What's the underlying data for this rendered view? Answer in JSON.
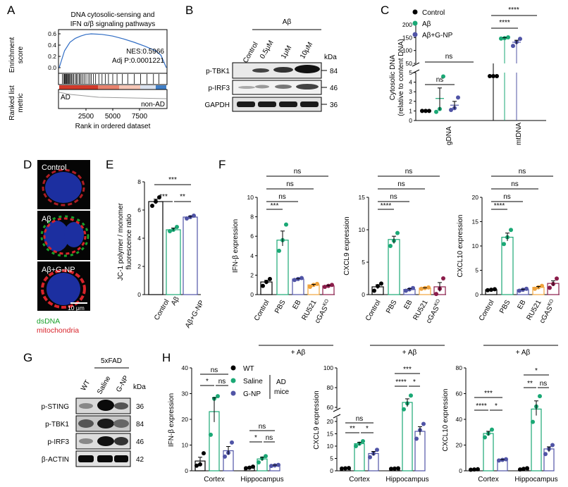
{
  "colors": {
    "black": "#000000",
    "green": "#1aa875",
    "blue": "#5054a6",
    "orange": "#f0a33c",
    "purple": "#8b1c4a",
    "gsea_line": "#2f6cc4",
    "dna_blue": "#1c2fa0",
    "dsdna_green": "#19a02a",
    "mito_red": "#d8232a"
  },
  "panels": {
    "A": {
      "letter": "A",
      "title_line1": "DNA cytosolic-sensing and",
      "title_line2": "IFN α/β signaling pathways",
      "nes": "NES:0.5966",
      "adjp": "Adj P:0.0001221",
      "ylabel_top_1": "Enrichment",
      "ylabel_top_2": "score",
      "yticks": [
        "0.6",
        "0.4",
        "0.2",
        "0.0"
      ],
      "ylabel_bot_1": "Ranked list",
      "ylabel_bot_2": "metric",
      "ad_label": "AD",
      "nonad_label": "non-AD",
      "xticks": [
        "2500",
        "5000",
        "7500"
      ],
      "xlabel": "Rank in ordered dataset"
    },
    "B": {
      "letter": "B",
      "ab_header": "Aβ",
      "lanes": [
        "Control",
        "0.5μM",
        "1μM",
        "10μM"
      ],
      "kda": "kDa",
      "rows": [
        {
          "name": "p-TBK1",
          "kda": "84"
        },
        {
          "name": "p-IRF3",
          "kda": "46"
        },
        {
          "name": "GAPDH",
          "kda": "36"
        }
      ]
    },
    "C": {
      "letter": "C",
      "legend": [
        "Control",
        "Aβ",
        "Aβ+G-NP"
      ],
      "ylabel_1": "Cytosolic DNA",
      "ylabel_2": "(relative to content DNA)",
      "yticks_top": [
        "200",
        "150",
        "100",
        "50"
      ],
      "yticks_bot": [
        "5",
        "4",
        "3",
        "2",
        "1",
        "0"
      ],
      "categories": [
        "gDNA",
        "mtDNA"
      ],
      "sig": [
        "ns",
        "ns",
        "****",
        "****"
      ]
    },
    "D": {
      "letter": "D",
      "labels": [
        "Control",
        "Aβ",
        "Aβ+G-NP"
      ],
      "scale": "10 μm",
      "legend1": "dsDNA",
      "legend2": "mitochondria"
    },
    "E": {
      "letter": "E",
      "ylabel_1": "JC-1 polymer / monomer",
      "ylabel_2": "fluorescence ratio",
      "yticks": [
        "8",
        "6",
        "4",
        "2",
        "0"
      ],
      "categories": [
        "Control",
        "Aβ",
        "Aβ+G-NP"
      ],
      "sig": [
        "***",
        "***",
        "**"
      ]
    },
    "F": {
      "letter": "F",
      "categories": [
        "Control",
        "PBS",
        "EB",
        "RU521",
        "cGAS"
      ],
      "ko": "KO",
      "footer": "+ Aβ",
      "sig_main": "***",
      "sig_main_cx": "****",
      "ns": "ns",
      "charts": [
        {
          "ylabel": "IFN-β expression",
          "yticks": [
            "10",
            "8",
            "6",
            "4",
            "2",
            "0"
          ]
        },
        {
          "ylabel": "CXCL9 expression",
          "yticks": [
            "15",
            "10",
            "5",
            "0"
          ]
        },
        {
          "ylabel": "CXCL10 expression",
          "yticks": [
            "20",
            "15",
            "10",
            "5",
            "0"
          ]
        }
      ]
    },
    "G": {
      "letter": "G",
      "header": "5xFAD",
      "lanes": [
        "WT",
        "Saline",
        "G-NP"
      ],
      "kda": "kDa",
      "rows": [
        {
          "name": "p-STING",
          "kda": "36"
        },
        {
          "name": "p-TBK1",
          "kda": "84"
        },
        {
          "name": "p-IRF3",
          "kda": "46"
        },
        {
          "name": "β-ACTIN",
          "kda": "42"
        }
      ]
    },
    "H": {
      "letter": "H",
      "legend": [
        "WT",
        "Saline",
        "G-NP"
      ],
      "legend_side_1": "AD",
      "legend_side_2": "mice",
      "groups": [
        "Cortex",
        "Hippocampus"
      ],
      "charts": [
        {
          "ylabel": "IFN-β expression",
          "yticks": [
            "40",
            "30",
            "20",
            "10",
            "0"
          ]
        },
        {
          "ylabel": "CXCL9 expression",
          "yticks_top": [
            "100",
            "80",
            "60"
          ],
          "yticks_bot": [
            "20",
            "15",
            "10",
            "5",
            "0"
          ]
        },
        {
          "ylabel": "CXCL10 expression",
          "yticks": [
            "80",
            "60",
            "40",
            "20",
            "0"
          ]
        }
      ]
    }
  },
  "chart_data": [
    {
      "panel": "A",
      "type": "line",
      "x": [
        0,
        500,
        1000,
        1500,
        2000,
        2500,
        3000,
        4000,
        5000,
        6000,
        7000,
        8000,
        9000,
        9500,
        10000
      ],
      "y": [
        0.0,
        0.3,
        0.45,
        0.52,
        0.56,
        0.59,
        0.6,
        0.59,
        0.56,
        0.51,
        0.45,
        0.38,
        0.3,
        0.22,
        0.0
      ],
      "xlim": [
        0,
        10000
      ],
      "ylim": [
        0,
        0.65
      ]
    },
    {
      "panel": "C",
      "type": "bar",
      "categories": [
        "gDNA",
        "mtDNA"
      ],
      "series": [
        {
          "name": "Control",
          "values": [
            1.0,
            1.0
          ],
          "points": [
            [
              1.0,
              1.0,
              1.0
            ],
            [
              1.0,
              1.0,
              1.0
            ]
          ]
        },
        {
          "name": "Aβ",
          "values": [
            2.3,
            148
          ],
          "points": [
            [
              0.9,
              1.2,
              4.6
            ],
            [
              146,
              148,
              151
            ]
          ]
        },
        {
          "name": "Aβ+G-NP",
          "values": [
            1.6,
            132
          ],
          "points": [
            [
              1.1,
              1.3,
              2.4
            ],
            [
              118,
              133,
              145
            ]
          ]
        }
      ]
    },
    {
      "panel": "E",
      "type": "bar",
      "categories": [
        "Control",
        "Aβ",
        "Aβ+G-NP"
      ],
      "values": [
        6.6,
        4.6,
        5.5
      ],
      "points": [
        [
          6.3,
          6.6,
          6.9
        ],
        [
          4.5,
          4.6,
          4.8
        ],
        [
          5.4,
          5.5,
          5.6
        ]
      ],
      "ylim": [
        0,
        8
      ]
    },
    {
      "panel": "F-IFNb",
      "type": "bar",
      "categories": [
        "Control",
        "PBS",
        "EB",
        "RU521",
        "cGAS KO"
      ],
      "values": [
        1.3,
        5.6,
        1.6,
        1.0,
        0.9
      ],
      "points": [
        [
          0.9,
          1.3,
          1.6
        ],
        [
          4.5,
          5.6,
          7.2
        ],
        [
          1.5,
          1.6,
          1.7
        ],
        [
          0.8,
          1.0,
          1.1
        ],
        [
          0.8,
          0.9,
          1.0
        ]
      ],
      "ylim": [
        0,
        10
      ]
    },
    {
      "panel": "F-CXCL9",
      "type": "bar",
      "categories": [
        "Control",
        "PBS",
        "EB",
        "RU521",
        "cGAS KO"
      ],
      "values": [
        1.2,
        8.5,
        0.8,
        1.0,
        1.2
      ],
      "points": [
        [
          0.6,
          1.3,
          1.7
        ],
        [
          7.5,
          8.3,
          9.5
        ],
        [
          0.6,
          0.8,
          1.0
        ],
        [
          0.9,
          1.0,
          1.1
        ],
        [
          0.1,
          0.9,
          2.5
        ]
      ],
      "ylim": [
        0,
        15
      ]
    },
    {
      "panel": "F-CXCL10",
      "type": "bar",
      "categories": [
        "Control",
        "PBS",
        "EB",
        "RU521",
        "cGAS KO"
      ],
      "values": [
        1.0,
        11.8,
        1.0,
        1.5,
        2.3
      ],
      "points": [
        [
          0.9,
          1.0,
          1.1
        ],
        [
          10.4,
          11.8,
          13.3
        ],
        [
          0.8,
          1.0,
          1.2
        ],
        [
          1.2,
          1.5,
          1.8
        ],
        [
          1.4,
          2.2,
          3.3
        ]
      ],
      "ylim": [
        0,
        20
      ]
    },
    {
      "panel": "H-IFNb",
      "type": "bar",
      "categories": [
        "Cortex",
        "Hippocampus"
      ],
      "series": [
        {
          "name": "WT",
          "values": [
            3.8,
            1.3
          ],
          "points": [
            [
              2.0,
              2.5,
              6.8
            ],
            [
              1.0,
              1.2,
              1.6
            ]
          ]
        },
        {
          "name": "Saline",
          "values": [
            23,
            4.6
          ],
          "points": [
            [
              14,
              28,
              29
            ],
            [
              3.3,
              4.8,
              5.7
            ]
          ]
        },
        {
          "name": "G-NP",
          "values": [
            7.8,
            2.1
          ],
          "points": [
            [
              5.5,
              7.0,
              11.0
            ],
            [
              1.9,
              2.1,
              2.3
            ]
          ]
        }
      ],
      "ylim": [
        0,
        40
      ]
    },
    {
      "panel": "H-CXCL9",
      "type": "bar",
      "categories": [
        "Cortex",
        "Hippocampus"
      ],
      "series": [
        {
          "name": "WT",
          "values": [
            1.0,
            0.9
          ],
          "points": [
            [
              0.9,
              1.0,
              1.1
            ],
            [
              0.8,
              0.9,
              1.0
            ]
          ]
        },
        {
          "name": "Saline",
          "values": [
            11,
            65
          ],
          "points": [
            [
              10,
              11,
              12
            ],
            [
              58,
              64,
              72
            ]
          ]
        },
        {
          "name": "G-NP",
          "values": [
            7,
            16
          ],
          "points": [
            [
              5.5,
              7.0,
              8.5
            ],
            [
              13,
              16.5,
              19
            ]
          ]
        }
      ]
    },
    {
      "panel": "H-CXCL10",
      "type": "bar",
      "categories": [
        "Cortex",
        "Hippocampus"
      ],
      "series": [
        {
          "name": "WT",
          "values": [
            1.0,
            1.5
          ],
          "points": [
            [
              0.8,
              1.0,
              1.2
            ],
            [
              1.0,
              1.5,
              2.0
            ]
          ]
        },
        {
          "name": "Saline",
          "values": [
            29,
            48
          ],
          "points": [
            [
              26,
              29,
              32
            ],
            [
              38,
              50,
              58
            ]
          ]
        },
        {
          "name": "G-NP",
          "values": [
            8.5,
            17
          ],
          "points": [
            [
              8,
              8.5,
              9
            ],
            [
              13,
              17,
              20
            ]
          ]
        }
      ],
      "ylim": [
        0,
        80
      ]
    }
  ]
}
